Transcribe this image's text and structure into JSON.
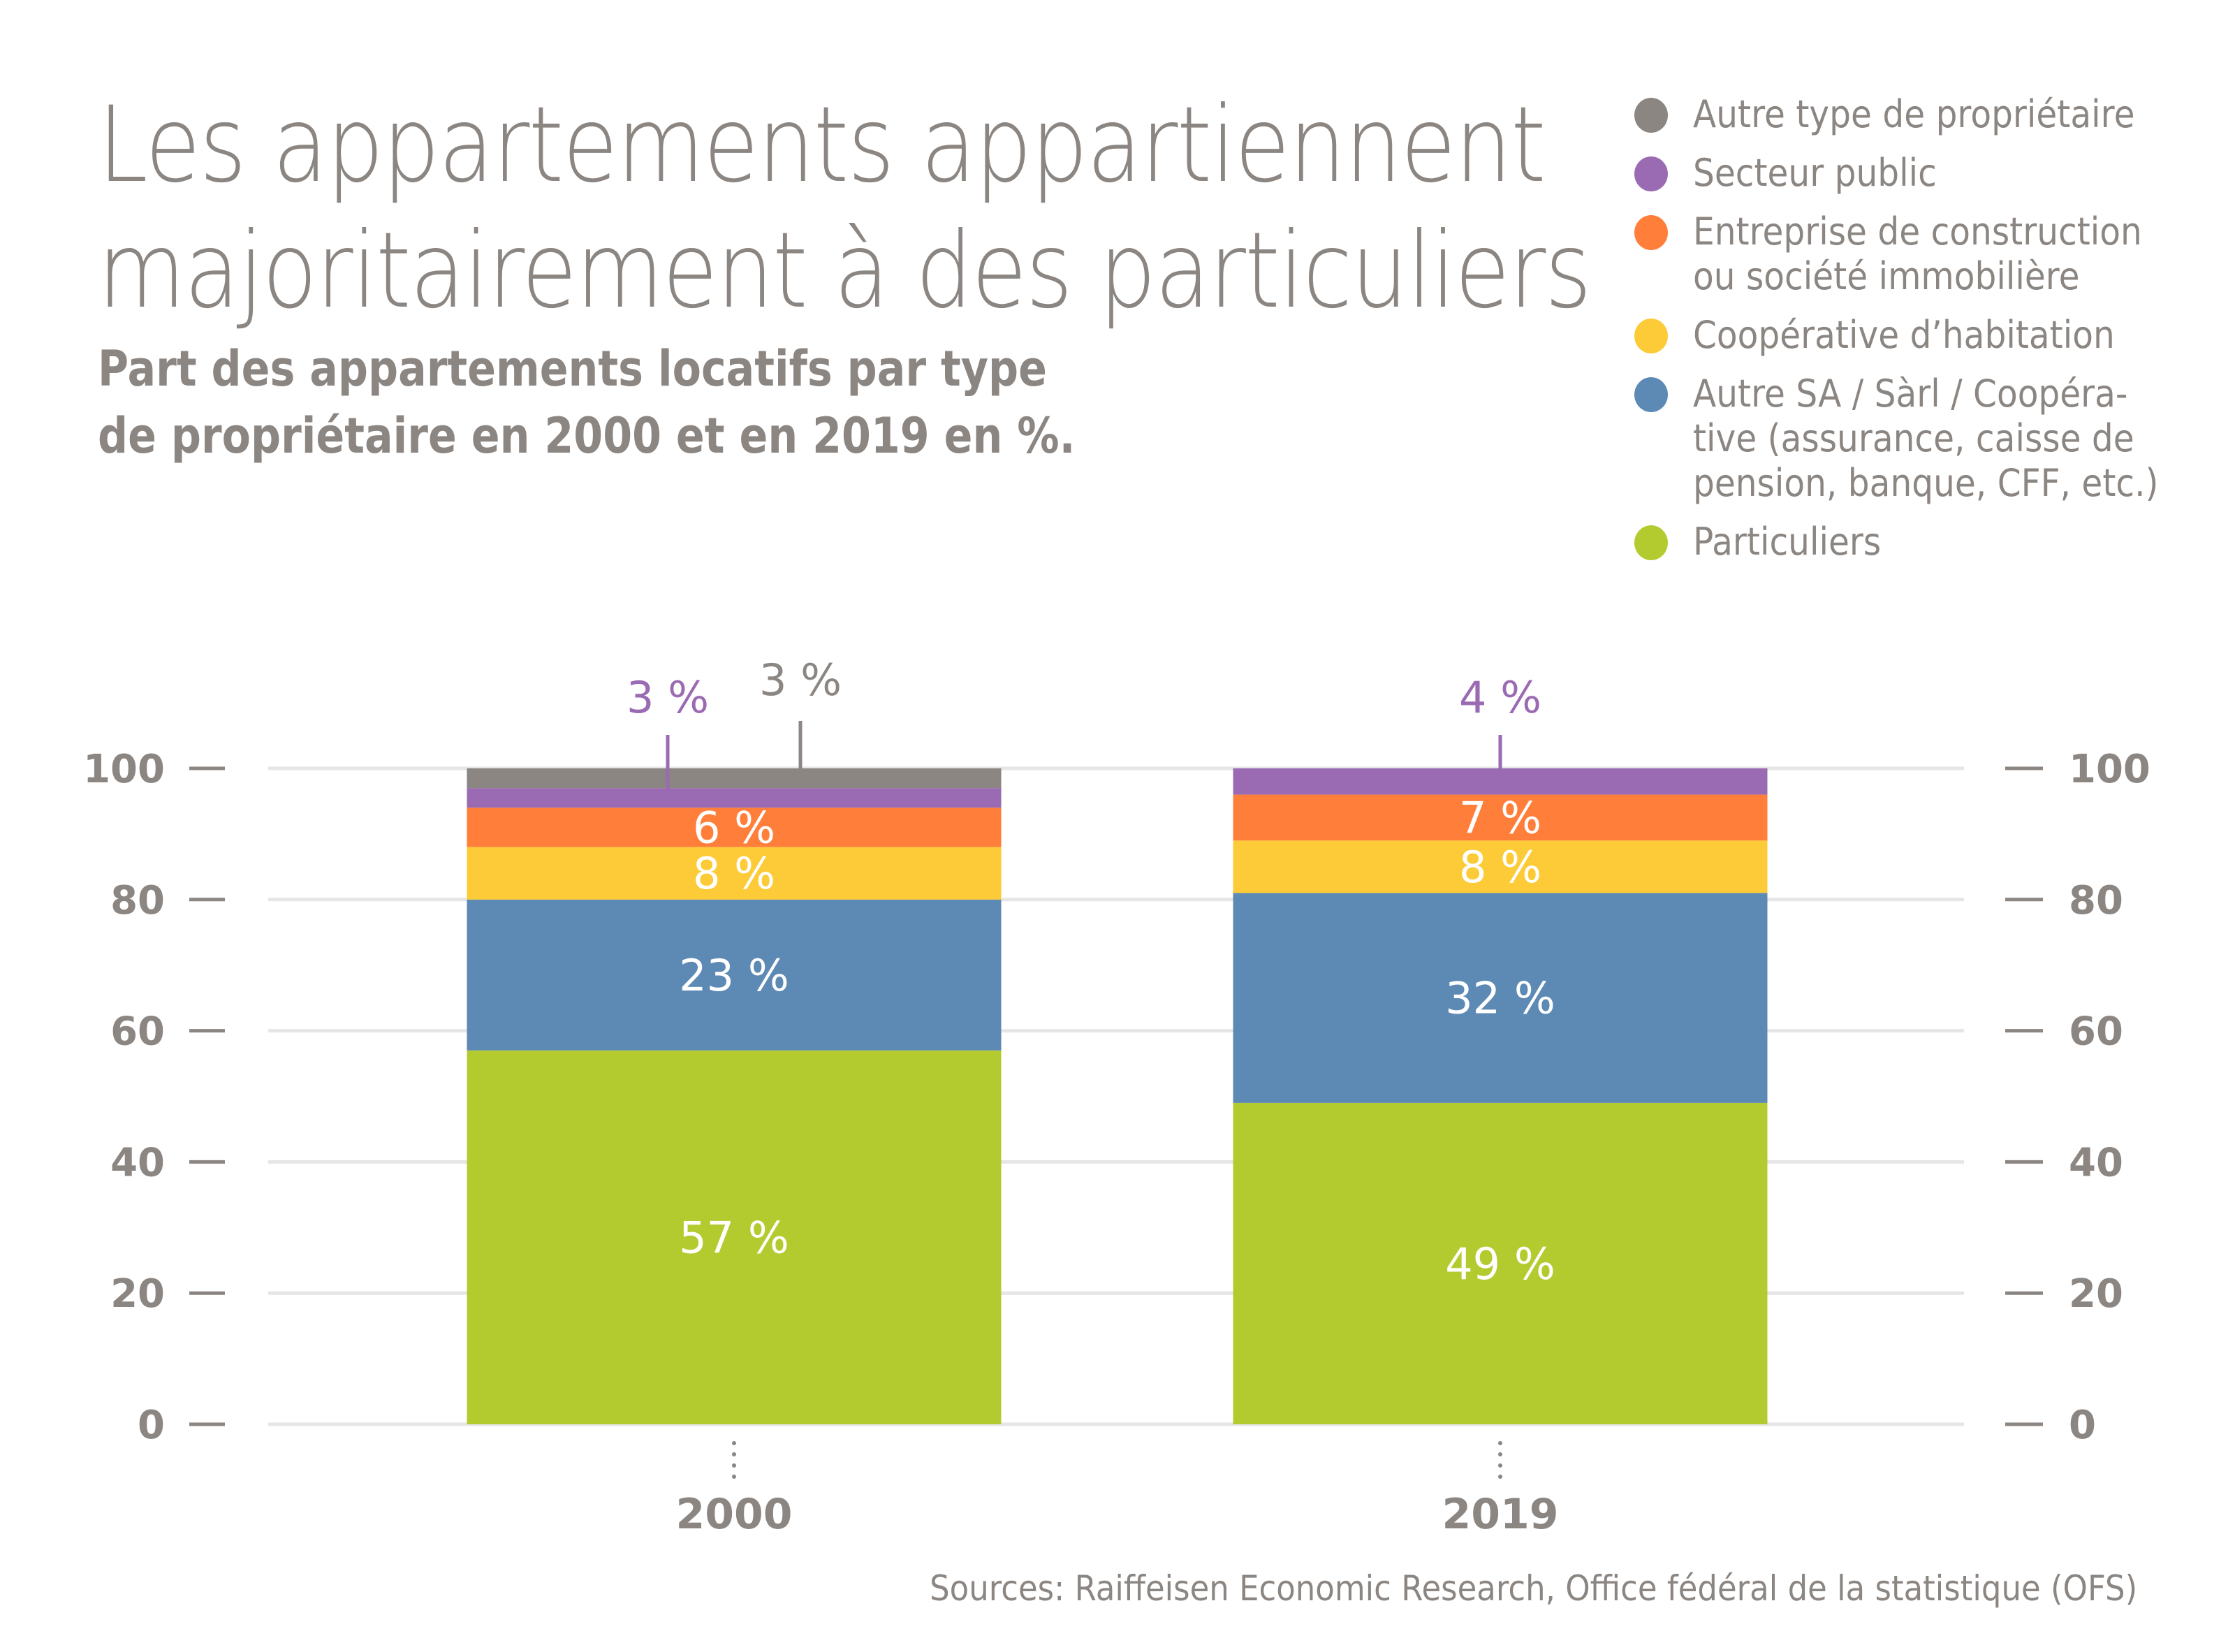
{
  "header": {
    "title_lines": [
      "Les appartements appartiennent",
      "majoritairement à des particuliers"
    ],
    "subtitle_lines": [
      "Part des appartements locatifs par type",
      "de propriétaire en 2000 et en 2019 en %."
    ]
  },
  "legend": [
    {
      "label": "Autre type de propriétaire",
      "color": "#8c8682"
    },
    {
      "label": "Secteur public",
      "color": "#9a6bb3"
    },
    {
      "label": "Entreprise de construction\nou société immobilière",
      "color": "#ff7f3a"
    },
    {
      "label": "Coopérative d’habitation",
      "color": "#fdcb37"
    },
    {
      "label": "Autre SA / Sàrl / Coopéra-\ntive (assurance, caisse de\npension, banque, CFF, etc.)",
      "color": "#5d89b5"
    },
    {
      "label": "Particuliers",
      "color": "#b4cb30"
    }
  ],
  "source": "Sources: Raiffeisen Economic Research, Office fédéral de la statistique (OFS)",
  "chart_data": {
    "type": "bar",
    "stacked": true,
    "title": "Les appartements appartiennent majoritairement à des particuliers",
    "subtitle": "Part des appartements locatifs par type de propriétaire en 2000 et en 2019 en %.",
    "xlabel": "",
    "ylabel": "",
    "categories": [
      "2000",
      "2019"
    ],
    "ylim": [
      0,
      100
    ],
    "yticks": [
      0,
      20,
      40,
      60,
      80,
      100
    ],
    "ytick_labels": [
      "0",
      "20",
      "40",
      "60",
      "80",
      "100"
    ],
    "grid": true,
    "legend_position": "top-right",
    "series": [
      {
        "name": "Particuliers",
        "color": "#b4cb30",
        "values": [
          57,
          49
        ],
        "labels": [
          "57 %",
          "49 %"
        ],
        "label_color": "#ffffff"
      },
      {
        "name": "Autre SA / Sàrl / Coopérative (assurance, caisse de pension, banque, CFF, etc.)",
        "color": "#5d89b5",
        "values": [
          23,
          32
        ],
        "labels": [
          "23 %",
          "32 %"
        ],
        "label_color": "#ffffff"
      },
      {
        "name": "Coopérative d’habitation",
        "color": "#fdcb37",
        "values": [
          8,
          8
        ],
        "labels": [
          "8 %",
          "8 %"
        ],
        "label_color": "#ffffff"
      },
      {
        "name": "Entreprise de construction ou société immobilière",
        "color": "#ff7f3a",
        "values": [
          6,
          7
        ],
        "labels": [
          "6 %",
          "7 %"
        ],
        "label_color": "#ffffff"
      },
      {
        "name": "Secteur public",
        "color": "#9a6bb3",
        "values": [
          3,
          4
        ],
        "labels": [
          "3 %",
          "4 %"
        ],
        "label_color": "#9a6bb3",
        "callout": true
      },
      {
        "name": "Autre type de propriétaire",
        "color": "#8c8682",
        "values": [
          3,
          0
        ],
        "labels": [
          "3 %",
          ""
        ],
        "label_color": "#8c8682",
        "callout": true
      }
    ],
    "source": "Sources: Raiffeisen Economic Research, Office fédéral de la statistique (OFS)"
  }
}
